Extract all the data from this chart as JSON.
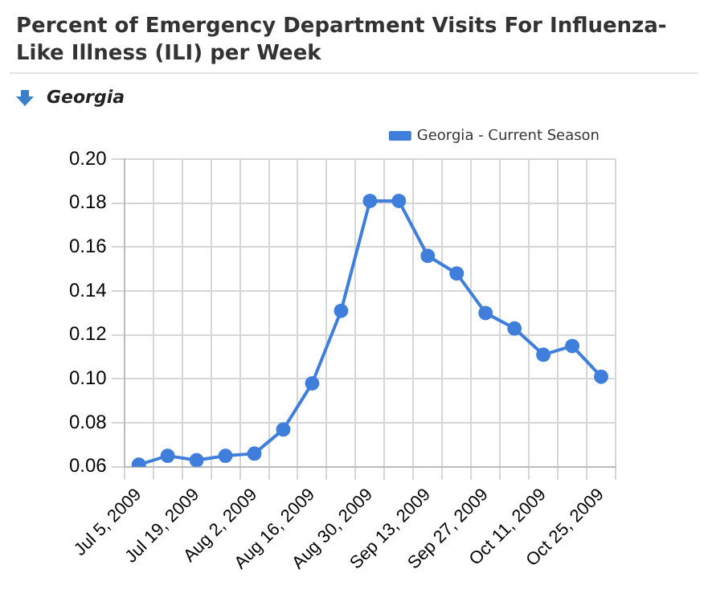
{
  "chart_data": {
    "type": "line",
    "title": "Percent of Emergency Department Visits For Influenza-Like Illness (ILI) per Week",
    "subtitle": "Georgia",
    "categories": [
      "Jul 5, 2009",
      null,
      "Jul 19, 2009",
      null,
      "Aug 2, 2009",
      null,
      "Aug 16, 2009",
      null,
      "Aug 30, 2009",
      null,
      "Sep 13, 2009",
      null,
      "Sep 27, 2009",
      null,
      "Oct 11, 2009",
      null,
      "Oct 25, 2009"
    ],
    "series": [
      {
        "name": "Georgia - Current Season",
        "color": "#3f7fdb",
        "values": [
          0.061,
          0.065,
          0.063,
          0.065,
          0.066,
          0.077,
          0.098,
          0.131,
          0.181,
          0.181,
          0.156,
          0.148,
          0.13,
          0.123,
          0.111,
          0.115,
          0.101
        ]
      }
    ],
    "ylim": [
      0.06,
      0.2
    ],
    "yticks": [
      {
        "value": 0.06,
        "label": "0.06"
      },
      {
        "value": 0.08,
        "label": "0.08"
      },
      {
        "value": 0.1,
        "label": "0.10"
      },
      {
        "value": 0.12,
        "label": "0.12"
      },
      {
        "value": 0.14,
        "label": "0.14"
      },
      {
        "value": 0.16,
        "label": "0.16"
      },
      {
        "value": 0.18,
        "label": "0.18"
      },
      {
        "value": 0.2,
        "label": "0.20"
      }
    ],
    "grid": true,
    "legend": "top right",
    "marker": "circle",
    "line_style": "solid"
  }
}
